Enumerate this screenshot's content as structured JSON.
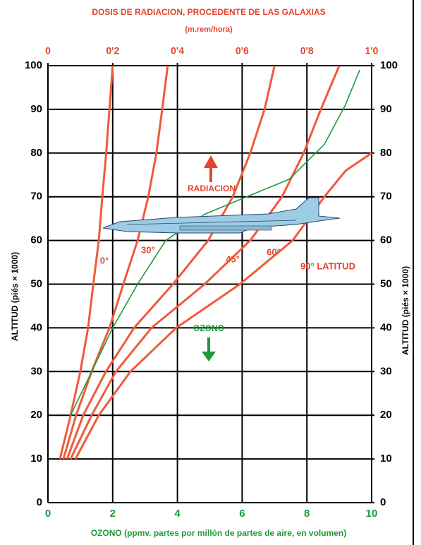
{
  "chart_data": {
    "type": "line",
    "title": "DOSIS DE RADIACION, PROCEDENTE DE LAS GALAXIAS",
    "subtitle": "(m.rem/hora)",
    "x_label": "OZONO (ppmv. partes por millón de partes de aire, en volumen)",
    "y_label": "ALTITUD (piés × 1000)",
    "y2_label": "ALTITUD (piés × 1000)",
    "annotations": [
      "RADIACION",
      "OZONO"
    ],
    "xlim": [
      0,
      10
    ],
    "xticks": [
      0,
      2,
      4,
      6,
      8,
      10
    ],
    "x2lim": [
      0,
      1
    ],
    "x2ticks": [
      0,
      {
        "value": 0.2,
        "label": "0'2"
      },
      {
        "value": 0.4,
        "label": "0'4"
      },
      {
        "value": 0.6,
        "label": "0'6"
      },
      {
        "value": 0.8,
        "label": "0'8"
      },
      {
        "value": 1.0,
        "label": "1'0"
      }
    ],
    "ylim": [
      0,
      100
    ],
    "yticks": [
      0,
      10,
      20,
      30,
      40,
      50,
      60,
      70,
      80,
      90,
      100
    ],
    "y2lim": [
      0,
      100
    ],
    "y2ticks": [
      0,
      10,
      20,
      30,
      40,
      50,
      60,
      70,
      80,
      90,
      100
    ],
    "grid": true,
    "series": [
      {
        "name": "0°",
        "color": "#ef5a3c",
        "axis": "x2",
        "x": [
          0.037,
          0.07,
          0.1,
          0.124,
          0.14,
          0.157,
          0.168,
          0.18,
          0.19,
          0.2
        ],
        "values": [
          10,
          20,
          30,
          40,
          50,
          60,
          70,
          80,
          90,
          100
        ]
      },
      {
        "name": "30°",
        "color": "#ef5a3c",
        "axis": "x2",
        "x": [
          0.048,
          0.087,
          0.135,
          0.19,
          0.233,
          0.277,
          0.31,
          0.335,
          0.353,
          0.37
        ],
        "values": [
          10,
          20,
          30,
          40,
          50,
          60,
          70,
          80,
          90,
          100
        ]
      },
      {
        "name": "45°",
        "color": "#ef5a3c",
        "axis": "x2",
        "x": [
          0.059,
          0.109,
          0.179,
          0.266,
          0.386,
          0.495,
          0.571,
          0.625,
          0.669,
          0.7
        ],
        "values": [
          10,
          20,
          30,
          40,
          50,
          60,
          70,
          80,
          90,
          100
        ]
      },
      {
        "name": "60°",
        "color": "#ef5a3c",
        "axis": "x2",
        "x": [
          0.07,
          0.135,
          0.21,
          0.32,
          0.484,
          0.625,
          0.723,
          0.79,
          0.843,
          0.9
        ],
        "values": [
          10,
          20,
          30,
          40,
          50,
          60,
          70,
          80,
          90,
          100
        ]
      },
      {
        "name": "90° LATITUD",
        "color": "#ef5a3c",
        "axis": "x2",
        "x": [
          0.085,
          0.157,
          0.255,
          0.396,
          0.593,
          0.756,
          0.854,
          0.92,
          1.0
        ],
        "values": [
          10,
          20,
          30,
          40,
          50,
          60,
          70,
          76,
          80
        ]
      },
      {
        "name": "OZONO",
        "color": "#1d9a3c",
        "axis": "x",
        "x": [
          0.7,
          1.35,
          2.0,
          2.77,
          3.64,
          4.84,
          6.14,
          7.45,
          8.54,
          9.19,
          9.63
        ],
        "values": [
          20,
          30,
          40,
          50,
          60,
          66,
          70,
          74,
          82,
          91,
          99
        ]
      }
    ]
  }
}
